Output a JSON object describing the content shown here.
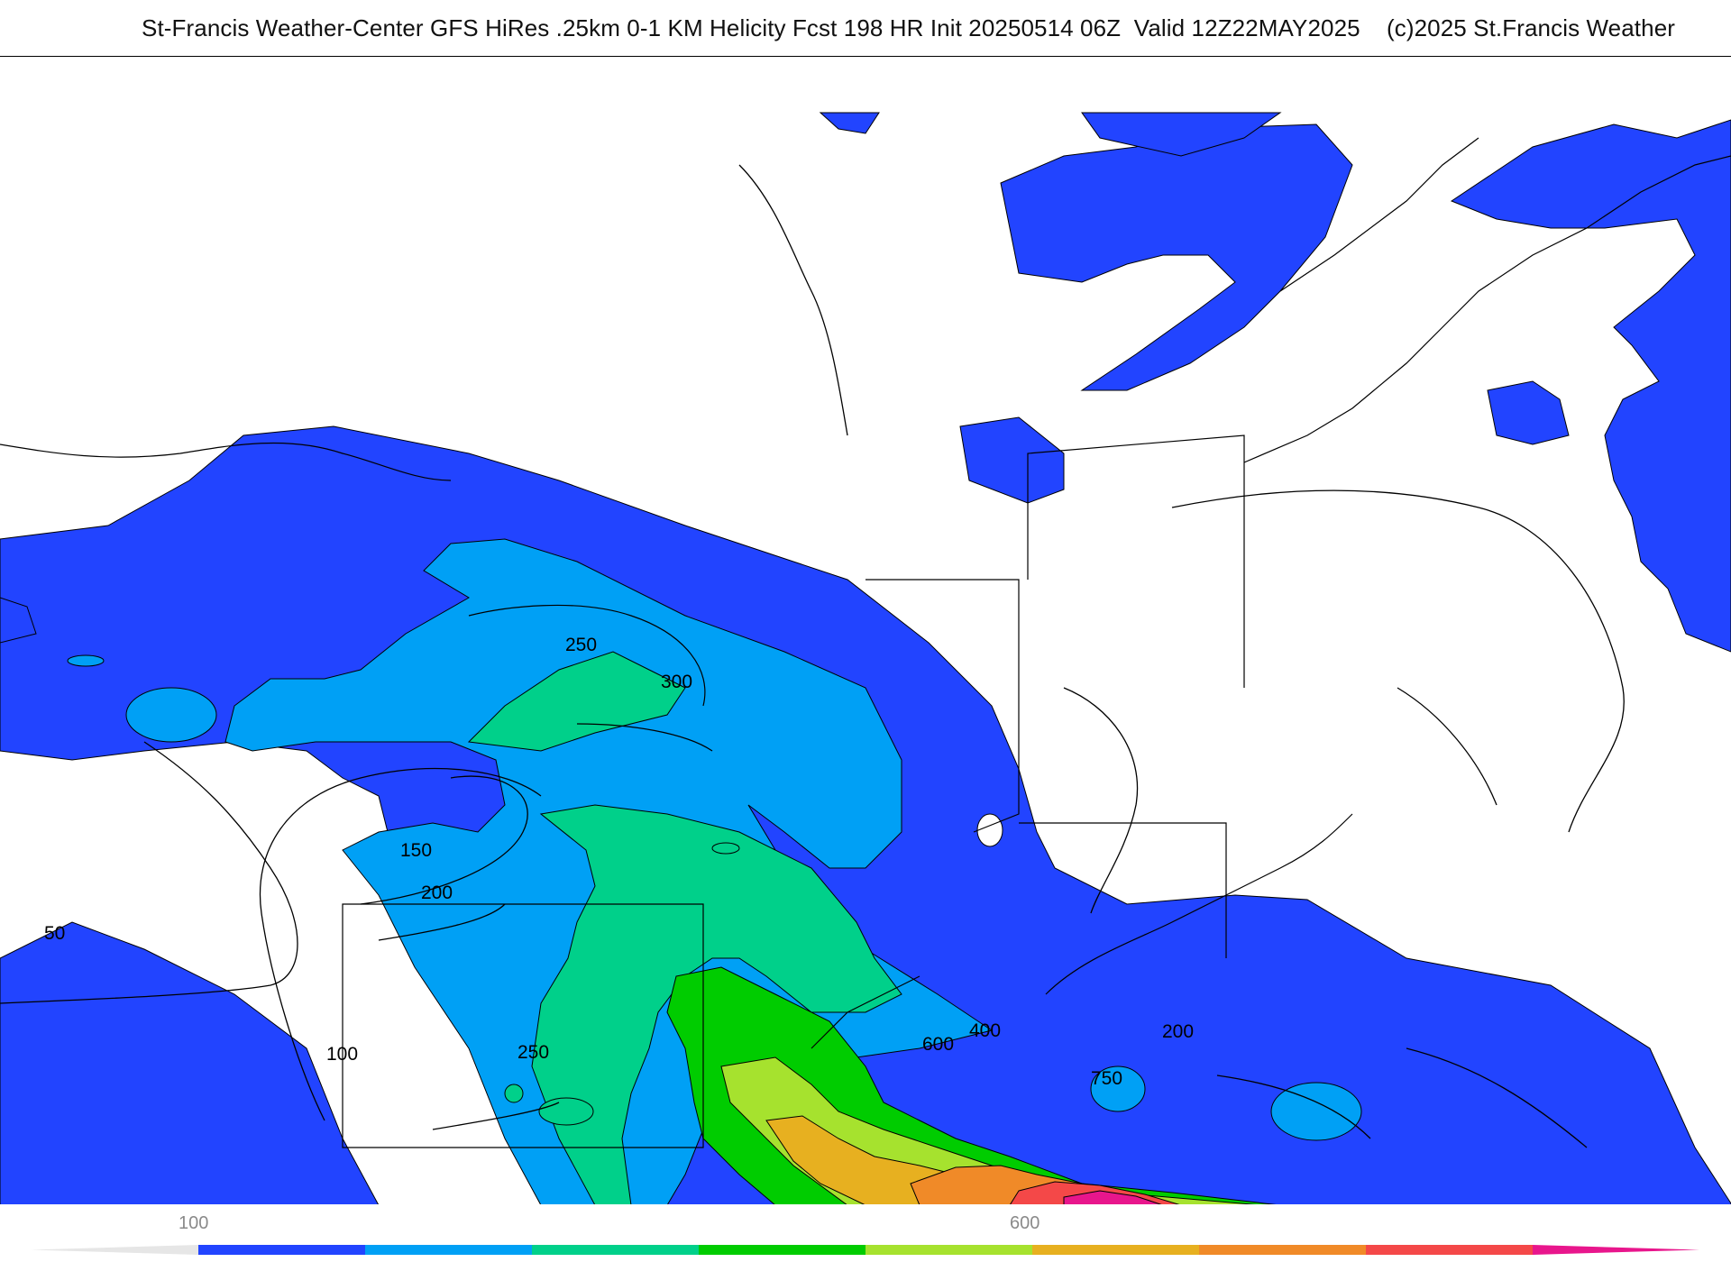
{
  "header": {
    "title": "St-Francis Weather-Center GFS HiRes .25km 0-1 KM Helicity Fcst 198 HR Init 20250514 06Z  Valid 12Z22MAY2025    (c)2025 St.Francis Weather"
  },
  "map": {
    "variable": "0-1 km storm-relative helicity",
    "contour_labels": [
      {
        "id": "c250a",
        "text": "250"
      },
      {
        "id": "c300",
        "text": "300"
      },
      {
        "id": "c150",
        "text": "150"
      },
      {
        "id": "c200a",
        "text": "200"
      },
      {
        "id": "c50",
        "text": "50"
      },
      {
        "id": "c100",
        "text": "100"
      },
      {
        "id": "c250b",
        "text": "250"
      },
      {
        "id": "c400",
        "text": "400"
      },
      {
        "id": "c600",
        "text": "600"
      },
      {
        "id": "c200b",
        "text": "200"
      },
      {
        "id": "c750",
        "text": "750"
      }
    ],
    "shading": {
      "levels": [
        "100-200",
        "200-250",
        "250-300",
        "300-400",
        "400-500",
        "500-600",
        "600-750",
        "750-900",
        "900+"
      ],
      "colors": [
        "#2244ff",
        "#00a0f5",
        "#00d08a",
        "#00cc00",
        "#a6e22e",
        "#e7b020",
        "#f08a28",
        "#f44848",
        "#e8168c"
      ]
    }
  },
  "colorbar": {
    "tick_labels": [
      "100",
      "600"
    ],
    "colors": [
      "#2244ff",
      "#00a0f5",
      "#00d08a",
      "#00cc00",
      "#a6e22e",
      "#e7b020",
      "#f08a28",
      "#f44848",
      "#e8168c"
    ]
  }
}
